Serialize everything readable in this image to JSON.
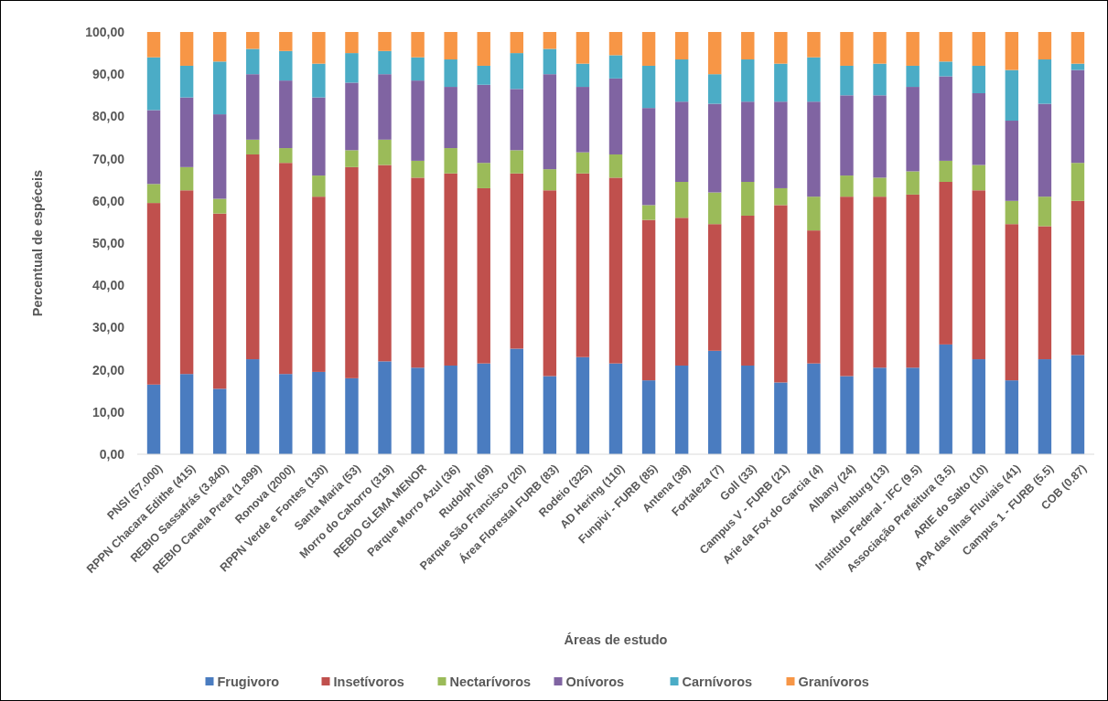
{
  "chart_data": {
    "type": "bar",
    "stacked": true,
    "xlabel": "Áreas de estudo",
    "ylabel": "Percentual de espéceis",
    "legend": "bottom",
    "grid": false,
    "categories": [
      "PNSI (57.000)",
      "RPPN Chacara Edithe (415)",
      "REBIO Sassafrás (3.840)",
      "REBIO Canela Preta (1.899)",
      "Ronova (2000)",
      "RPPN Verde e Fontes (130)",
      "Santa Maria (53)",
      "Morro do Cahorro (319)",
      "REBIO  GLEMA MENOR",
      "Parque Morro Azul (36)",
      "Rudolph (69)",
      "Parque São Francisco (20)",
      "Área Florestal FURB (83)",
      "Rodeio (325)",
      "AD Hering (110)",
      "Funpivi - FURB (85)",
      "Antena (38)",
      "Fortaleza (7)",
      "Goll (33)",
      "Campus V - FURB (21)",
      "Arie da Fox do Garcia (4)",
      "Albany (24)",
      "Altenburg (13)",
      "Instituto Federal - IFC (9.5)",
      "Associação Prefeitura (3.5)",
      "ARIE do Salto (10)",
      "APA das Ilhas Fluviais (41)",
      "Campus 1 - FURB (5.5)",
      "COB (0.87)"
    ],
    "ylim": [
      0,
      100
    ],
    "yticks": [
      {
        "value": 0,
        "label": "0,00"
      },
      {
        "value": 10,
        "label": "10,00"
      },
      {
        "value": 20,
        "label": "20,00"
      },
      {
        "value": 30,
        "label": "30,00"
      },
      {
        "value": 40,
        "label": "40,00"
      },
      {
        "value": 50,
        "label": "50,00"
      },
      {
        "value": 60,
        "label": "60,00"
      },
      {
        "value": 70,
        "label": "70,00"
      },
      {
        "value": 80,
        "label": "80,00"
      },
      {
        "value": 90,
        "label": "90,00"
      },
      {
        "value": 100,
        "label": "100,00"
      }
    ],
    "series": [
      {
        "name": "Frugivoro",
        "color": "#4a7cc0",
        "values": [
          16.5,
          19,
          15.5,
          22.5,
          19,
          19.5,
          18,
          22,
          20.5,
          21,
          21.5,
          25,
          18.5,
          23,
          21.5,
          17.5,
          21,
          24.5,
          21,
          17,
          21.5,
          18.5,
          20.5,
          20.5,
          26,
          22.5,
          17.5,
          22.5,
          23.5
        ]
      },
      {
        "name": "Insetívoros",
        "color": "#c0504d",
        "values": [
          43,
          43.5,
          41.5,
          48.5,
          50,
          41.5,
          50,
          46.5,
          45,
          45.5,
          41.5,
          41.5,
          44,
          43.5,
          44,
          38,
          35,
          30,
          35.5,
          42,
          31.5,
          42.5,
          40.5,
          41,
          38.5,
          40,
          37,
          31.5,
          36.5
        ]
      },
      {
        "name": "Nectarívoros",
        "color": "#9bbb59",
        "values": [
          4.5,
          5.5,
          3.5,
          3.5,
          3.5,
          5,
          4,
          6,
          4,
          6,
          6,
          5.5,
          5,
          5,
          5.5,
          3.5,
          8.5,
          7.5,
          8,
          4,
          8,
          5,
          4.5,
          5.5,
          5,
          6,
          5.5,
          7,
          9
        ]
      },
      {
        "name": "Onívoros",
        "color": "#8064a2",
        "values": [
          17.5,
          16.5,
          20,
          15.5,
          16,
          18.5,
          16,
          15.5,
          19,
          14.5,
          18.5,
          14.5,
          22.5,
          15.5,
          18,
          23,
          19,
          21,
          19,
          20.5,
          22.5,
          19,
          19.5,
          20,
          20,
          17,
          19,
          22,
          22
        ]
      },
      {
        "name": "Carnívoros",
        "color": "#4bacc6",
        "values": [
          12.5,
          7.5,
          12.5,
          6,
          7,
          8,
          7,
          5.5,
          5.5,
          6.5,
          4.5,
          8.5,
          6,
          5.5,
          5.5,
          10,
          10,
          7,
          10,
          9,
          10.5,
          7,
          7.5,
          5,
          3.5,
          6.5,
          12,
          10.5,
          1.5
        ]
      },
      {
        "name": "Granívoros",
        "color": "#f79646",
        "values": [
          6,
          8,
          7,
          4,
          4.5,
          7.5,
          5,
          4.5,
          6,
          6.5,
          8,
          5,
          4,
          7.5,
          5.5,
          8,
          6.5,
          10,
          6.5,
          7.5,
          6,
          8,
          7.5,
          8,
          7,
          8,
          9,
          6.5,
          7.5
        ]
      }
    ]
  }
}
